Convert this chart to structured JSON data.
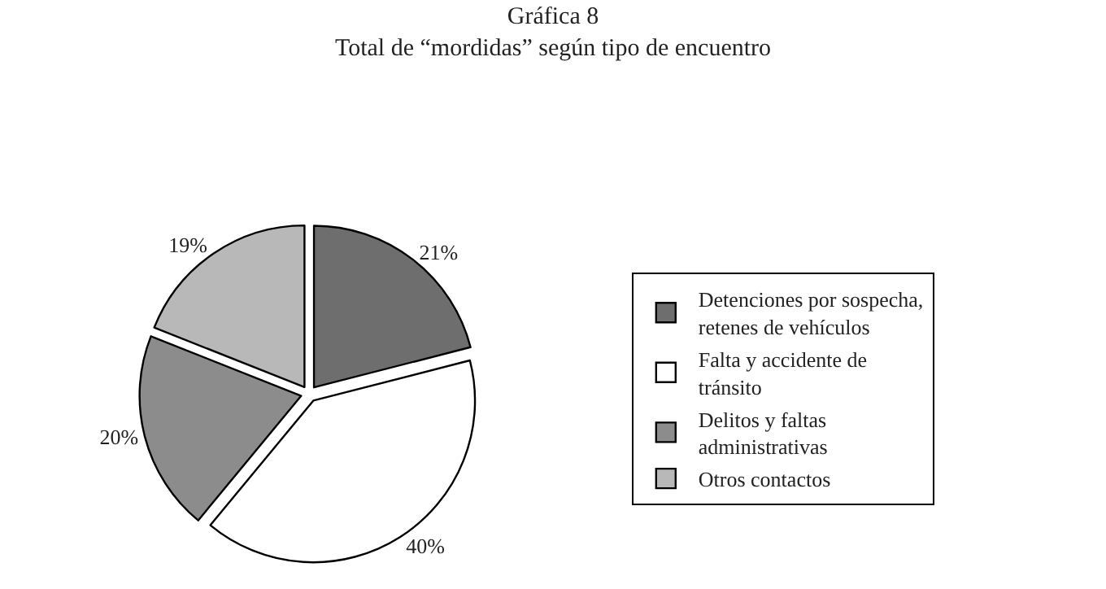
{
  "chart_data": {
    "type": "pie",
    "title": "Gráfica 8",
    "subtitle": "Total de “mordidas” según tipo de encuentro",
    "categories": [
      "Detenciones por sospecha, retenes de vehículos",
      "Falta y accidente de tránsito",
      "Delitos y faltas administrativas",
      "Otros contactos"
    ],
    "values": [
      21,
      40,
      20,
      19
    ],
    "value_labels": [
      "21%",
      "40%",
      "20%",
      "19%"
    ],
    "colors": [
      "#6e6e6e",
      "#ffffff",
      "#8c8c8c",
      "#b8b8b8"
    ],
    "legend": "right"
  }
}
